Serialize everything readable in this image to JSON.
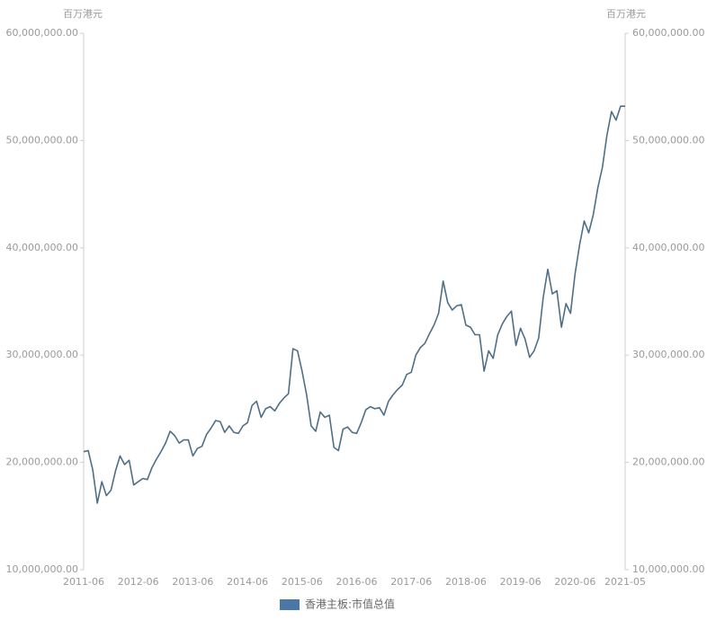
{
  "chart_data": {
    "type": "line",
    "y_label": "百万港元",
    "y2_label": "百万港元",
    "categories": [
      "2011-06",
      null,
      null,
      null,
      null,
      null,
      null,
      null,
      null,
      null,
      null,
      null,
      "2012-06",
      null,
      null,
      null,
      null,
      null,
      null,
      null,
      null,
      null,
      null,
      null,
      "2013-06",
      null,
      null,
      null,
      null,
      null,
      null,
      null,
      null,
      null,
      null,
      null,
      "2014-06",
      null,
      null,
      null,
      null,
      null,
      null,
      null,
      null,
      null,
      null,
      null,
      "2015-06",
      null,
      null,
      null,
      null,
      null,
      null,
      null,
      null,
      null,
      null,
      null,
      "2016-06",
      null,
      null,
      null,
      null,
      null,
      null,
      null,
      null,
      null,
      null,
      null,
      "2017-06",
      null,
      null,
      null,
      null,
      null,
      null,
      null,
      null,
      null,
      null,
      null,
      "2018-06",
      null,
      null,
      null,
      null,
      null,
      null,
      null,
      null,
      null,
      null,
      null,
      "2019-06",
      null,
      null,
      null,
      null,
      null,
      null,
      null,
      null,
      null,
      null,
      null,
      "2020-06",
      null,
      null,
      null,
      null,
      null,
      null,
      null,
      null,
      null,
      null,
      "2021-05"
    ],
    "series": [
      {
        "name": "香港主板:市值总值",
        "color": "#4f6f86",
        "values": [
          21000000,
          21100000,
          19300000,
          16200000,
          18200000,
          16900000,
          17400000,
          19200000,
          20600000,
          19800000,
          20200000,
          17900000,
          18200000,
          18500000,
          18400000,
          19500000,
          20300000,
          21000000,
          21800000,
          22900000,
          22500000,
          21800000,
          22100000,
          22100000,
          20600000,
          21300000,
          21500000,
          22600000,
          23200000,
          23900000,
          23800000,
          22800000,
          23400000,
          22800000,
          22700000,
          23400000,
          23700000,
          25300000,
          25700000,
          24200000,
          25000000,
          25200000,
          24800000,
          25500000,
          26000000,
          26400000,
          30600000,
          30400000,
          28500000,
          26300000,
          23400000,
          22900000,
          24700000,
          24200000,
          24400000,
          21400000,
          21100000,
          23100000,
          23300000,
          22800000,
          22700000,
          23700000,
          24900000,
          25200000,
          25000000,
          25100000,
          24400000,
          25700000,
          26300000,
          26800000,
          27200000,
          28200000,
          28400000,
          30000000,
          30700000,
          31100000,
          32000000,
          32800000,
          33900000,
          36900000,
          34900000,
          34200000,
          34600000,
          34700000,
          32800000,
          32600000,
          31900000,
          31900000,
          28500000,
          30400000,
          29700000,
          31900000,
          32900000,
          33600000,
          34100000,
          30900000,
          32500000,
          31500000,
          29800000,
          30400000,
          31600000,
          35400000,
          38000000,
          35700000,
          36000000,
          32600000,
          34800000,
          33900000,
          37600000,
          40300000,
          42500000,
          41400000,
          43100000,
          45600000,
          47500000,
          50500000,
          52700000,
          51900000,
          53200000,
          53200000
        ]
      }
    ],
    "ylim": [
      10000000,
      60000000
    ],
    "yticks": [
      {
        "value": 10000000,
        "label": "10,000,000.00"
      },
      {
        "value": 20000000,
        "label": "20,000,000.00"
      },
      {
        "value": 30000000,
        "label": "30,000,000.00"
      },
      {
        "value": 40000000,
        "label": "40,000,000.00"
      },
      {
        "value": 50000000,
        "label": "50,000,000.00"
      },
      {
        "value": 60000000,
        "label": "60,000,000.00"
      }
    ],
    "y2lim": [
      10000000,
      60000000
    ],
    "y2ticks": [
      {
        "value": 10000000,
        "label": "10,000,000.00"
      },
      {
        "value": 20000000,
        "label": "20,000,000.00"
      },
      {
        "value": 30000000,
        "label": "30,000,000.00"
      },
      {
        "value": 40000000,
        "label": "40,000,000.00"
      },
      {
        "value": 50000000,
        "label": "50,000,000.00"
      },
      {
        "value": 60000000,
        "label": "60,000,000.00"
      }
    ],
    "grid": false,
    "legend": "bottom",
    "legend_color": "#4a76a8"
  }
}
